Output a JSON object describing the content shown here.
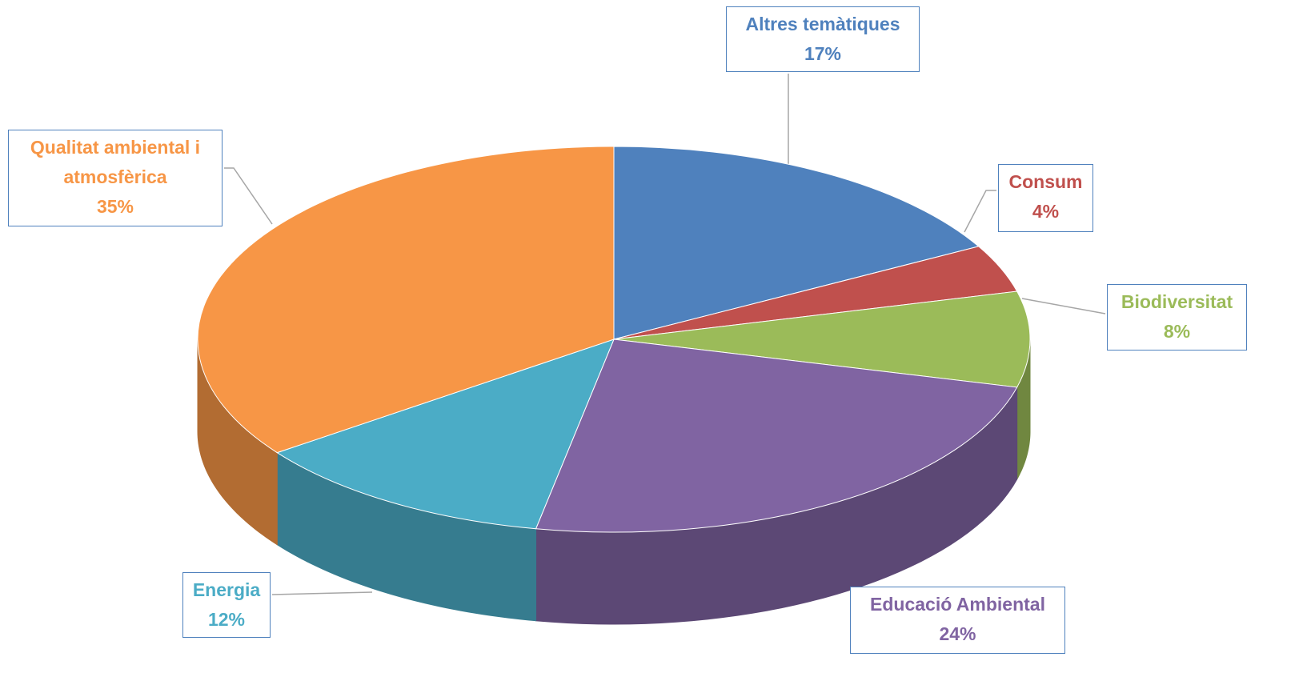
{
  "chart_data": {
    "type": "pie3d",
    "categories": [
      "Altres temàtiques",
      "Consum",
      "Biodiversitat",
      "Educació Ambiental",
      "Energia",
      "Qualitat ambiental i atmosfèrica"
    ],
    "values": [
      17,
      4,
      8,
      24,
      12,
      35
    ],
    "value_labels": [
      "17%",
      "4%",
      "8%",
      "24%",
      "12%",
      "35%"
    ],
    "colors": [
      "#4f81bd",
      "#c0504d",
      "#9bbb59",
      "#8064a2",
      "#4bacc6",
      "#f79646"
    ]
  }
}
